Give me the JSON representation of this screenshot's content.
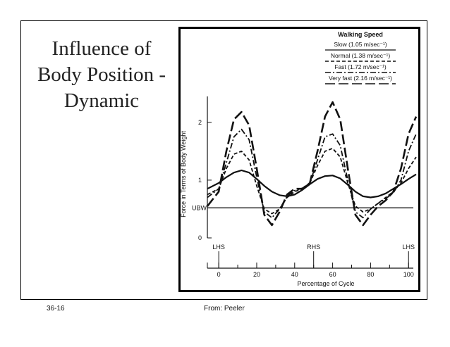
{
  "slide": {
    "title": "Influence of Body Position - Dynamic",
    "footer_left": "36-16",
    "footer_right": "From: Peeler"
  },
  "chart_data": {
    "type": "line",
    "title": "Walking Speed",
    "ylabel": "Force in Terms of Body Weight",
    "xlabel": "Percentage of Cycle",
    "xlim": [
      -6,
      104
    ],
    "ylim": [
      0,
      2.4
    ],
    "yticks": [
      0,
      1,
      2
    ],
    "xticks": [
      0,
      20,
      40,
      60,
      80,
      100
    ],
    "x_minor_ticks": [
      10,
      30,
      50,
      70,
      90
    ],
    "reference_line": {
      "label": "UBW",
      "y": 0.52
    },
    "events": [
      {
        "label": "LHS",
        "x": 0
      },
      {
        "label": "RHS",
        "x": 50
      },
      {
        "label": "LHS",
        "x": 100
      }
    ],
    "legend_position": "top-right",
    "series": [
      {
        "name": "Slow (1.05 m/sec⁻¹)",
        "style": "solid",
        "x": [
          -6,
          0,
          4,
          8,
          12,
          16,
          20,
          24,
          28,
          32,
          36,
          40,
          44,
          48,
          52,
          56,
          60,
          64,
          68,
          72,
          76,
          80,
          84,
          88,
          92,
          96,
          100,
          104
        ],
        "y": [
          0.85,
          0.95,
          1.05,
          1.13,
          1.17,
          1.13,
          1.02,
          0.9,
          0.8,
          0.74,
          0.72,
          0.75,
          0.83,
          0.93,
          1.02,
          1.07,
          1.08,
          1.03,
          0.92,
          0.8,
          0.72,
          0.7,
          0.72,
          0.77,
          0.85,
          0.93,
          1.02,
          1.1
        ]
      },
      {
        "name": "Normal (1.38 m/sec⁻¹)",
        "style": "dashed-short",
        "x": [
          -6,
          0,
          4,
          8,
          12,
          16,
          20,
          24,
          28,
          32,
          36,
          40,
          44,
          48,
          52,
          56,
          60,
          64,
          68,
          72,
          76,
          80,
          84,
          88,
          92,
          96,
          100,
          104
        ],
        "y": [
          0.75,
          0.85,
          1.2,
          1.45,
          1.5,
          1.35,
          0.9,
          0.5,
          0.42,
          0.5,
          0.7,
          0.8,
          0.85,
          0.95,
          1.25,
          1.5,
          1.55,
          1.4,
          0.95,
          0.55,
          0.45,
          0.5,
          0.6,
          0.7,
          0.8,
          0.95,
          1.2,
          1.4
        ]
      },
      {
        "name": "Fast (1.72 m/sec⁻¹)",
        "style": "dash-dot",
        "x": [
          -6,
          0,
          4,
          8,
          12,
          16,
          20,
          24,
          28,
          32,
          36,
          40,
          44,
          48,
          52,
          56,
          60,
          64,
          68,
          72,
          76,
          80,
          84,
          88,
          92,
          96,
          100,
          104
        ],
        "y": [
          0.7,
          0.85,
          1.3,
          1.75,
          1.88,
          1.7,
          1.05,
          0.45,
          0.35,
          0.5,
          0.72,
          0.82,
          0.86,
          0.95,
          1.35,
          1.75,
          1.8,
          1.6,
          1.0,
          0.45,
          0.35,
          0.5,
          0.6,
          0.68,
          0.78,
          1.0,
          1.5,
          1.8
        ]
      },
      {
        "name": "Very fast (2.16 m/sec⁻¹)",
        "style": "dashed-long",
        "x": [
          -6,
          0,
          4,
          8,
          12,
          16,
          20,
          24,
          28,
          32,
          36,
          40,
          44,
          48,
          52,
          56,
          60,
          64,
          68,
          72,
          76,
          80,
          84,
          88,
          92,
          96,
          100,
          104
        ],
        "y": [
          0.55,
          0.8,
          1.5,
          2.05,
          2.18,
          1.95,
          1.2,
          0.4,
          0.22,
          0.45,
          0.75,
          0.85,
          0.85,
          0.95,
          1.5,
          2.1,
          2.35,
          2.05,
          1.2,
          0.4,
          0.22,
          0.4,
          0.55,
          0.65,
          0.8,
          1.2,
          1.8,
          2.1
        ]
      }
    ]
  },
  "colors": {
    "ink": "#111111",
    "background": "#ffffff"
  }
}
